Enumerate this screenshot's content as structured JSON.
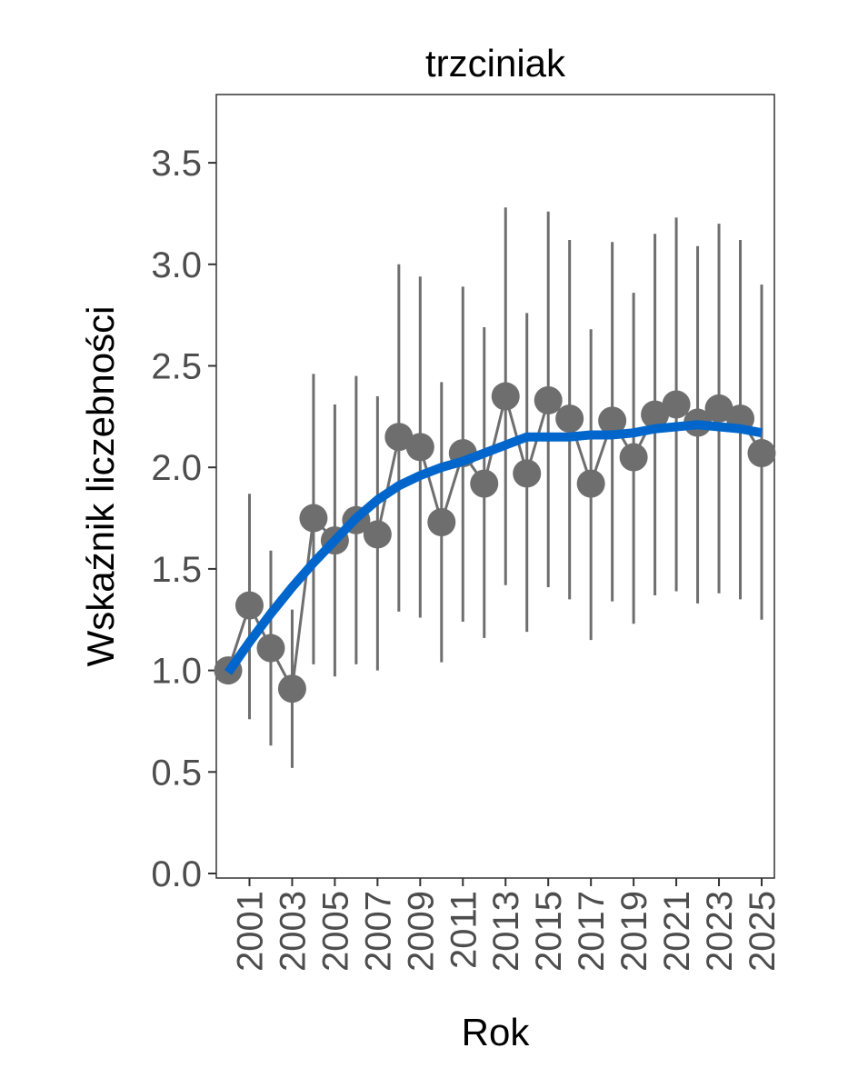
{
  "chart_data": {
    "type": "line",
    "title": "trzciniak",
    "xlabel": "Rok",
    "ylabel": "Wskaźnik liczebności",
    "ylim": [
      0,
      3.8
    ],
    "xlim": [
      1999.5,
      2025.6
    ],
    "yticks": [
      "0.0",
      "0.5",
      "1.0",
      "1.5",
      "2.0",
      "2.5",
      "3.0",
      "3.5"
    ],
    "xticks": [
      "2001",
      "2003",
      "2005",
      "2007",
      "2009",
      "2011",
      "2013",
      "2015",
      "2017",
      "2019",
      "2021",
      "2023",
      "2025"
    ],
    "grid": false,
    "colors": {
      "points": "#6e6e6e",
      "trend": "#0066cc",
      "axis": "#333333",
      "tick_text": "#4d4d4d"
    },
    "series": [
      {
        "name": "index",
        "x": [
          2000,
          2001,
          2002,
          2003,
          2004,
          2005,
          2006,
          2007,
          2008,
          2009,
          2010,
          2011,
          2012,
          2013,
          2014,
          2015,
          2016,
          2017,
          2018,
          2019,
          2020,
          2021,
          2022,
          2023,
          2024,
          2025
        ],
        "values": [
          1.0,
          1.32,
          1.11,
          0.91,
          1.75,
          1.64,
          1.74,
          1.67,
          2.15,
          2.1,
          1.73,
          2.07,
          1.92,
          2.35,
          1.97,
          2.33,
          2.24,
          1.92,
          2.23,
          2.05,
          2.26,
          2.31,
          2.22,
          2.29,
          2.24,
          2.07
        ],
        "upper": [
          null,
          1.87,
          1.59,
          1.3,
          2.46,
          2.31,
          2.45,
          2.35,
          3.0,
          2.94,
          2.42,
          2.89,
          2.69,
          3.28,
          2.76,
          3.26,
          3.12,
          2.68,
          3.11,
          2.86,
          3.15,
          3.23,
          3.09,
          3.2,
          3.12,
          2.9
        ],
        "lower": [
          null,
          0.76,
          0.63,
          0.52,
          1.03,
          0.97,
          1.03,
          1.0,
          1.29,
          1.26,
          1.04,
          1.24,
          1.16,
          1.42,
          1.19,
          1.41,
          1.35,
          1.15,
          1.34,
          1.23,
          1.37,
          1.39,
          1.33,
          1.38,
          1.35,
          1.25
        ]
      },
      {
        "name": "trend",
        "x": [
          2000,
          2001,
          2002,
          2003,
          2004,
          2005,
          2006,
          2007,
          2008,
          2009,
          2010,
          2011,
          2012,
          2013,
          2014,
          2015,
          2016,
          2017,
          2018,
          2019,
          2020,
          2021,
          2022,
          2023,
          2024,
          2025
        ],
        "values": [
          0.99,
          1.14,
          1.28,
          1.41,
          1.53,
          1.64,
          1.75,
          1.84,
          1.91,
          1.96,
          2.0,
          2.03,
          2.07,
          2.11,
          2.15,
          2.15,
          2.15,
          2.16,
          2.16,
          2.17,
          2.19,
          2.2,
          2.21,
          2.2,
          2.19,
          2.17
        ]
      }
    ]
  }
}
